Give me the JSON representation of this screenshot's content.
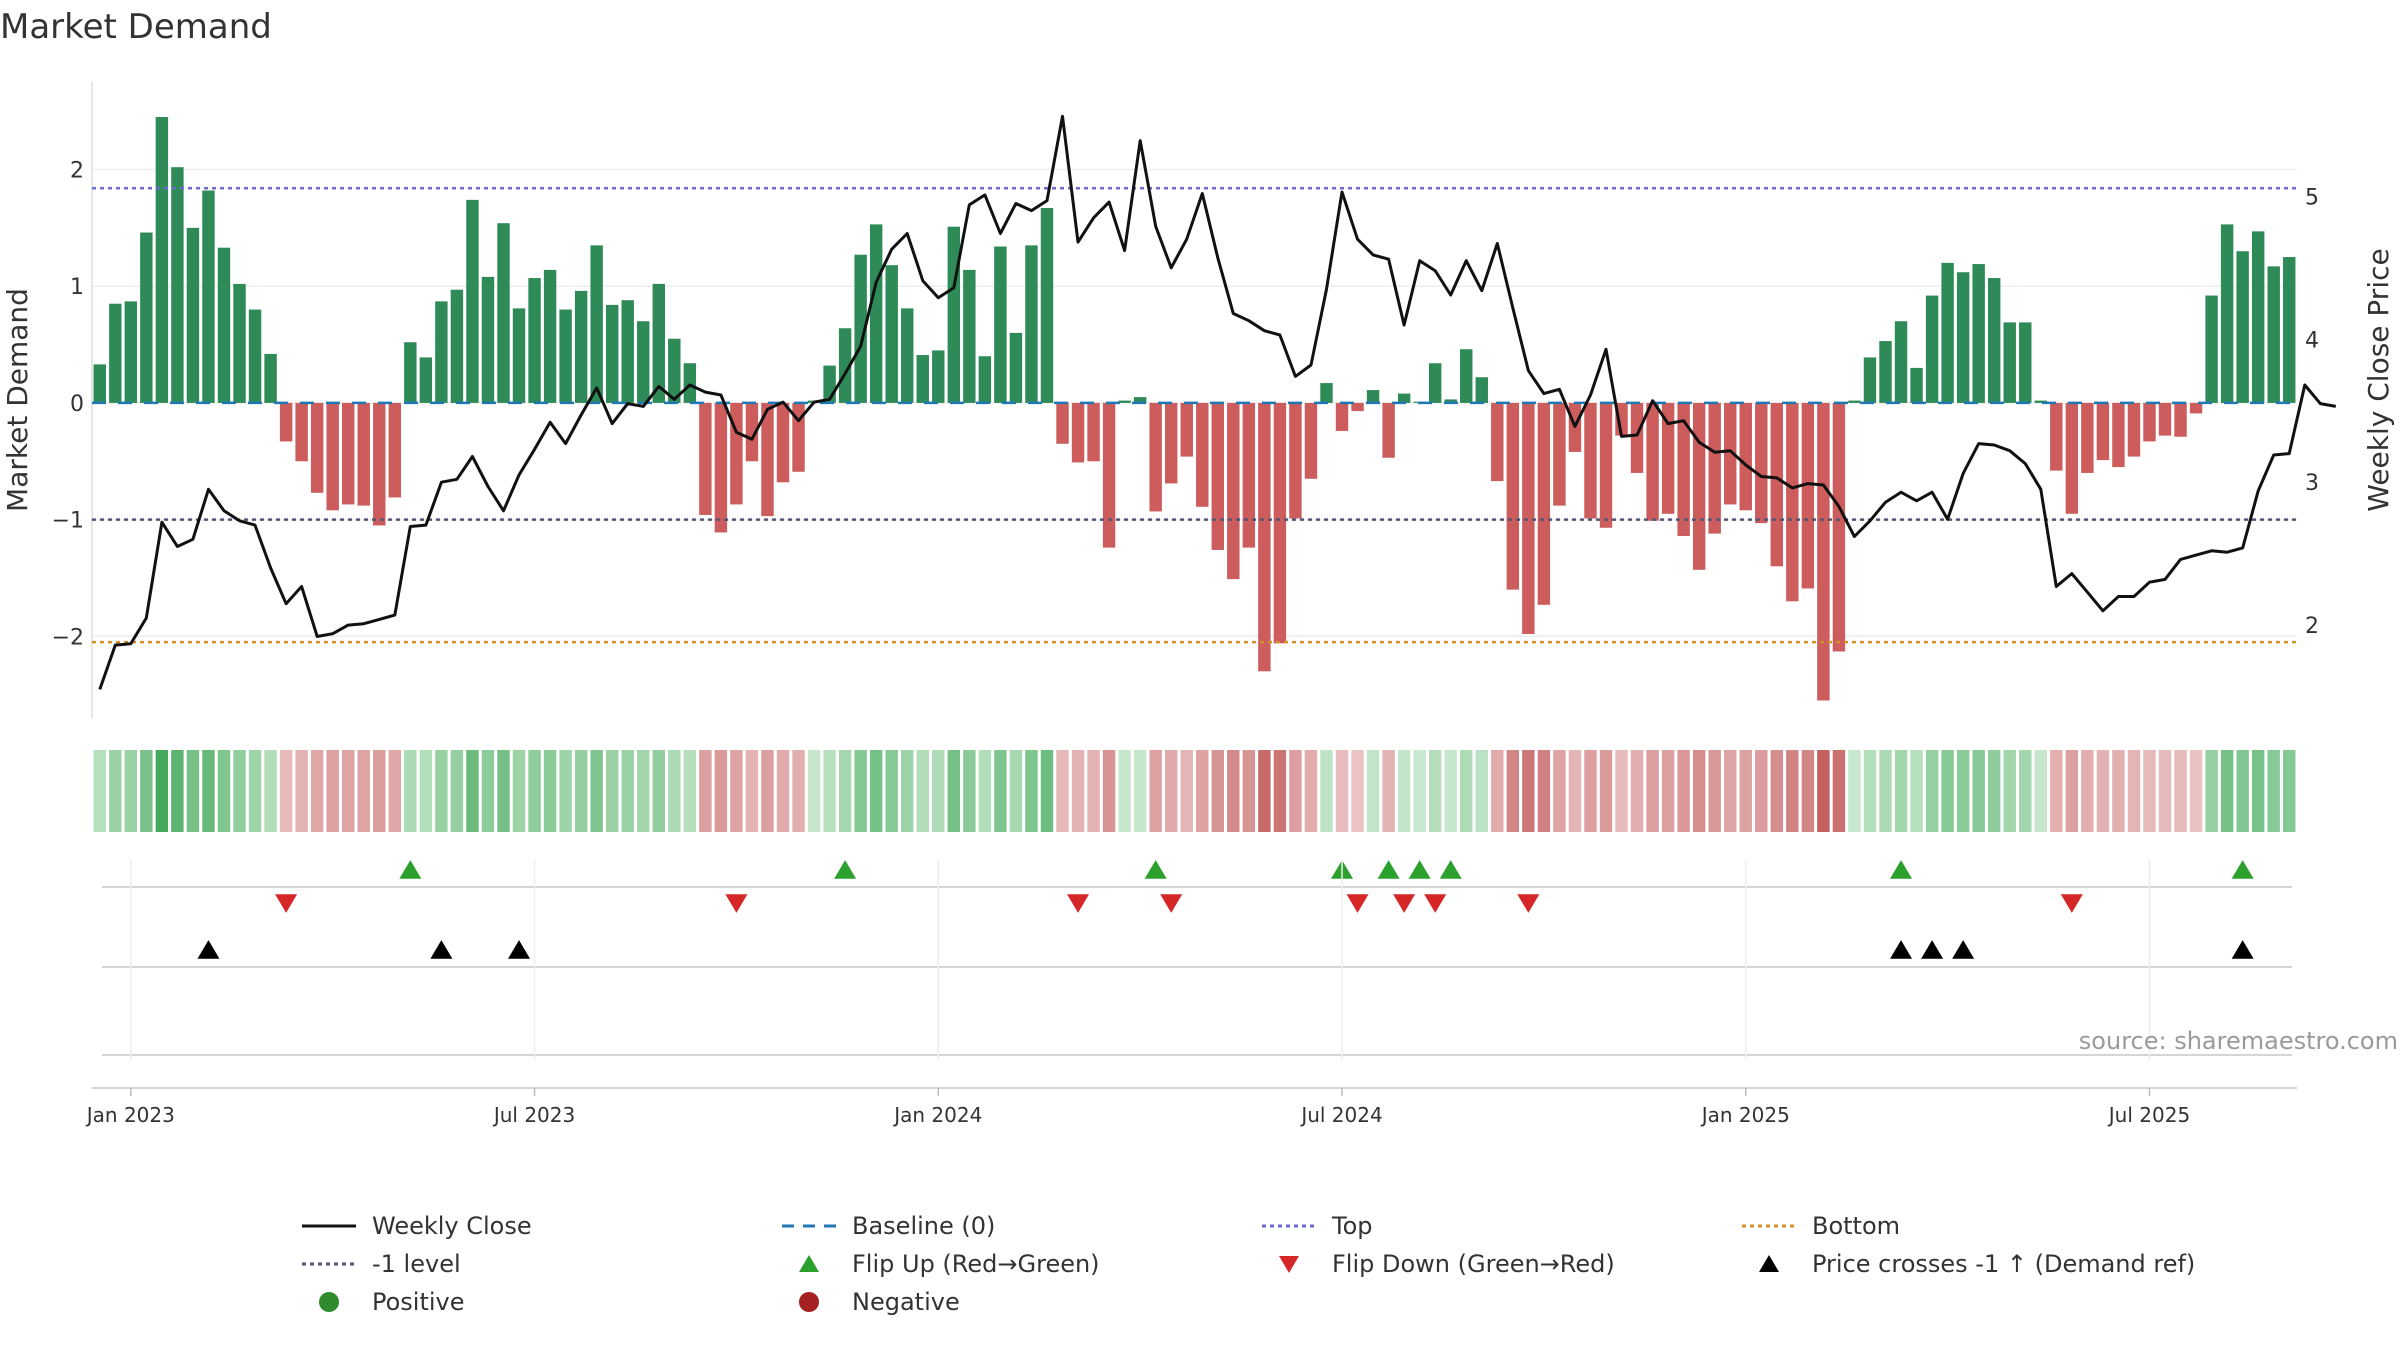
{
  "chart_data": {
    "type": "bar",
    "title": "Market Demand",
    "ylabel_left": "Market Demand",
    "ylabel_right": "Weekly Close Price",
    "ylim_left": [
      -2.7,
      2.75
    ],
    "ylim_right": [
      1.35,
      5.8
    ],
    "yticks_left": [
      {
        "value": 2,
        "label": "2"
      },
      {
        "value": 1,
        "label": "1"
      },
      {
        "value": 0,
        "label": "0"
      },
      {
        "value": -1,
        "label": "−1"
      },
      {
        "value": -2,
        "label": "−2"
      }
    ],
    "yticks_right": [
      {
        "value": 5,
        "label": "5"
      },
      {
        "value": 4,
        "label": "4"
      },
      {
        "value": 3,
        "label": "3"
      },
      {
        "value": 2,
        "label": "2"
      }
    ],
    "xticks": [
      {
        "week": 2,
        "label": "Jan 2023"
      },
      {
        "week": 28,
        "label": "Jul 2023"
      },
      {
        "week": 54,
        "label": "Jan 2024"
      },
      {
        "week": 80,
        "label": "Jul 2024"
      },
      {
        "week": 106,
        "label": "Jan 2025"
      },
      {
        "week": 132,
        "label": "Jul 2025"
      }
    ],
    "reference_lines": {
      "top": 1.84,
      "minus_one": -1.0,
      "bottom": -2.05,
      "baseline": 0
    },
    "demand": [
      0.33,
      0.85,
      0.87,
      1.46,
      2.45,
      2.02,
      1.5,
      1.82,
      1.33,
      1.02,
      0.8,
      0.42,
      -0.33,
      -0.5,
      -0.77,
      -0.92,
      -0.87,
      -0.88,
      -1.05,
      -0.81,
      0.52,
      0.39,
      0.87,
      0.97,
      1.74,
      1.08,
      1.54,
      0.81,
      1.07,
      1.14,
      0.8,
      0.96,
      1.35,
      0.84,
      0.88,
      0.7,
      1.02,
      0.55,
      0.34,
      -0.96,
      -1.11,
      -0.87,
      -0.5,
      -0.97,
      -0.68,
      -0.59,
      0.02,
      0.32,
      0.64,
      1.27,
      1.53,
      1.18,
      0.81,
      0.41,
      0.45,
      1.51,
      1.14,
      0.4,
      1.34,
      0.6,
      1.35,
      1.67,
      -0.35,
      -0.51,
      -0.5,
      -1.24,
      0.02,
      0.05,
      -0.93,
      -0.69,
      -0.46,
      -0.89,
      -1.26,
      -1.51,
      -1.24,
      -2.3,
      -2.06,
      -0.99,
      -0.65,
      0.17,
      -0.24,
      -0.07,
      0.11,
      -0.47,
      0.08,
      0.01,
      0.34,
      0.03,
      0.46,
      0.22,
      -0.67,
      -1.6,
      -1.98,
      -1.73,
      -0.88,
      -0.42,
      -0.99,
      -1.07,
      -0.28,
      -0.6,
      -1.01,
      -0.95,
      -1.14,
      -1.43,
      -1.12,
      -0.87,
      -0.92,
      -1.03,
      -1.4,
      -1.7,
      -1.59,
      -2.55,
      -2.13,
      0.02,
      0.39,
      0.53,
      0.7,
      0.3,
      0.92,
      1.2,
      1.12,
      1.19,
      1.07,
      0.69,
      0.69,
      0.02,
      -0.58,
      -0.95,
      -0.6,
      -0.49,
      -0.55,
      -0.46,
      -0.33,
      -0.28,
      -0.29,
      -0.09,
      0.92,
      1.53,
      1.3,
      1.47,
      1.17,
      1.25
    ],
    "weekly_close": [
      1.55,
      1.86,
      1.87,
      2.05,
      2.72,
      2.55,
      2.6,
      2.95,
      2.8,
      2.73,
      2.7,
      2.4,
      2.15,
      2.27,
      1.92,
      1.94,
      2.0,
      2.01,
      2.04,
      2.07,
      2.69,
      2.7,
      3.0,
      3.02,
      3.18,
      2.97,
      2.8,
      3.05,
      3.23,
      3.42,
      3.27,
      3.47,
      3.66,
      3.41,
      3.55,
      3.53,
      3.67,
      3.58,
      3.68,
      3.63,
      3.61,
      3.35,
      3.3,
      3.51,
      3.56,
      3.43,
      3.56,
      3.58,
      3.76,
      3.95,
      4.4,
      4.63,
      4.74,
      4.41,
      4.29,
      4.36,
      4.94,
      5.01,
      4.74,
      4.95,
      4.9,
      4.97,
      5.56,
      4.68,
      4.85,
      4.96,
      4.62,
      5.39,
      4.79,
      4.5,
      4.7,
      5.02,
      4.57,
      4.18,
      4.13,
      4.06,
      4.03,
      3.74,
      3.82,
      4.35,
      5.03,
      4.7,
      4.59,
      4.56,
      4.1,
      4.55,
      4.48,
      4.31,
      4.55,
      4.34,
      4.67,
      4.22,
      3.78,
      3.62,
      3.65,
      3.39,
      3.61,
      3.93,
      3.32,
      3.33,
      3.57,
      3.41,
      3.43,
      3.28,
      3.21,
      3.22,
      3.12,
      3.04,
      3.03,
      2.96,
      2.99,
      2.98,
      2.83,
      2.62,
      2.73,
      2.86,
      2.93,
      2.87,
      2.93,
      2.74,
      3.06,
      3.27,
      3.26,
      3.22,
      3.13,
      2.95,
      2.27,
      2.36,
      2.23,
      2.1,
      2.2,
      2.2,
      2.3,
      2.32,
      2.46,
      2.49,
      2.52,
      2.51,
      2.54,
      2.94,
      3.19,
      3.2,
      3.68,
      3.55,
      3.53
    ],
    "flip_up_weeks": [
      20,
      48,
      68,
      80,
      83,
      85,
      87,
      116,
      138
    ],
    "flip_down_weeks": [
      12,
      41,
      63,
      69,
      81,
      84,
      86,
      92,
      127
    ],
    "price_cross_weeks": [
      7,
      22,
      27,
      116,
      118,
      120,
      138
    ]
  },
  "source": "source: sharemaestro.com",
  "legend": [
    {
      "label": "Weekly Close",
      "symbol": "line-solid",
      "color": "#111111"
    },
    {
      "label": "Baseline (0)",
      "symbol": "line-dashed",
      "color": "#1f77b4"
    },
    {
      "label": "Top",
      "symbol": "line-dotted",
      "color": "#6a6ad0"
    },
    {
      "label": "Bottom",
      "symbol": "line-dotted",
      "color": "#d4902a"
    },
    {
      "label": "-1 level",
      "symbol": "line-dotted",
      "color": "#555577"
    },
    {
      "label": "Flip Up (Red→Green)",
      "symbol": "triangle-up",
      "color": "#2ca02c"
    },
    {
      "label": "Flip Down (Green→Red)",
      "symbol": "triangle-down",
      "color": "#d62728"
    },
    {
      "label": "Price crosses -1 ↑ (Demand ref)",
      "symbol": "triangle-up",
      "color": "#000000"
    },
    {
      "label": "Positive",
      "symbol": "circle",
      "color": "#2e8b2e"
    },
    {
      "label": "Negative",
      "symbol": "circle",
      "color": "#a52020"
    }
  ],
  "colors": {
    "positive_bar": "#2e8b57",
    "negative_bar": "#cd5c5c",
    "flip_up": "#2ca02c",
    "flip_down": "#d62728",
    "cross": "#000000",
    "top_line": "#6a6ad0",
    "bottom_line": "#d4902a",
    "minus_one_line": "#555577",
    "baseline": "#1f77b4"
  }
}
